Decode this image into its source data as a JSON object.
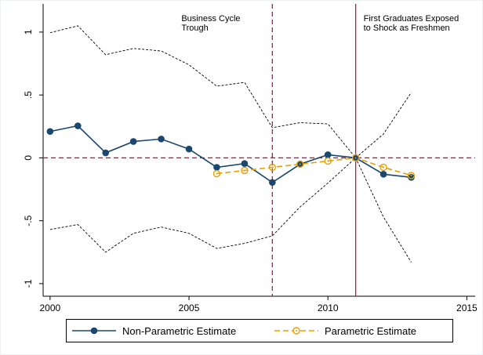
{
  "chart_data": {
    "type": "line",
    "x": [
      2000,
      2001,
      2002,
      2003,
      2004,
      2005,
      2006,
      2007,
      2008,
      2009,
      2010,
      2011,
      2012,
      2013
    ],
    "series": [
      {
        "name": "Non-Parametric Estimate",
        "color": "#1a476f",
        "marker": "filled",
        "dashed": false,
        "values": [
          0.21,
          0.255,
          0.04,
          0.13,
          0.15,
          0.07,
          -0.075,
          -0.045,
          -0.195,
          -0.05,
          0.025,
          0,
          -0.13,
          -0.155
        ]
      },
      {
        "name": "Parametric Estimate",
        "color": "#e8a000",
        "marker": "hollow",
        "dashed": true,
        "values": [
          null,
          null,
          null,
          null,
          null,
          null,
          -0.125,
          -0.1,
          -0.075,
          -0.05,
          -0.025,
          0,
          -0.075,
          -0.14
        ]
      }
    ],
    "band": {
      "color": "#000000",
      "upper": [
        0.995,
        1.05,
        0.82,
        0.87,
        0.85,
        0.74,
        0.57,
        0.6,
        0.24,
        0.28,
        0.27,
        0,
        0.19,
        0.52
      ],
      "lower": [
        -0.57,
        -0.53,
        -0.75,
        -0.6,
        -0.55,
        -0.6,
        -0.72,
        -0.68,
        -0.62,
        -0.39,
        -0.2,
        0,
        -0.47,
        -0.83
      ]
    },
    "reference_lines": [
      {
        "x": 2008,
        "dashed": true,
        "color": "#c4143c",
        "label": [
          "Business Cycle",
          "Trough"
        ]
      },
      {
        "x": 2011,
        "dashed": false,
        "color": "#c4143c",
        "label": [
          "First Graduates Exposed",
          "to Shock as Freshmen"
        ]
      }
    ],
    "hline": {
      "y": 0,
      "color": "#c4143c"
    },
    "xlim": [
      1999.75,
      2015.3
    ],
    "xticks": [
      2000,
      2005,
      2010,
      2015
    ],
    "ylim": [
      -1.1,
      1.224
    ],
    "yticks": [
      {
        "value": -1,
        "label": "-1"
      },
      {
        "value": -0.5,
        "label": "-.5"
      },
      0,
      {
        "value": 0.5,
        "label": ".5"
      },
      1
    ],
    "legend": "bottom"
  }
}
